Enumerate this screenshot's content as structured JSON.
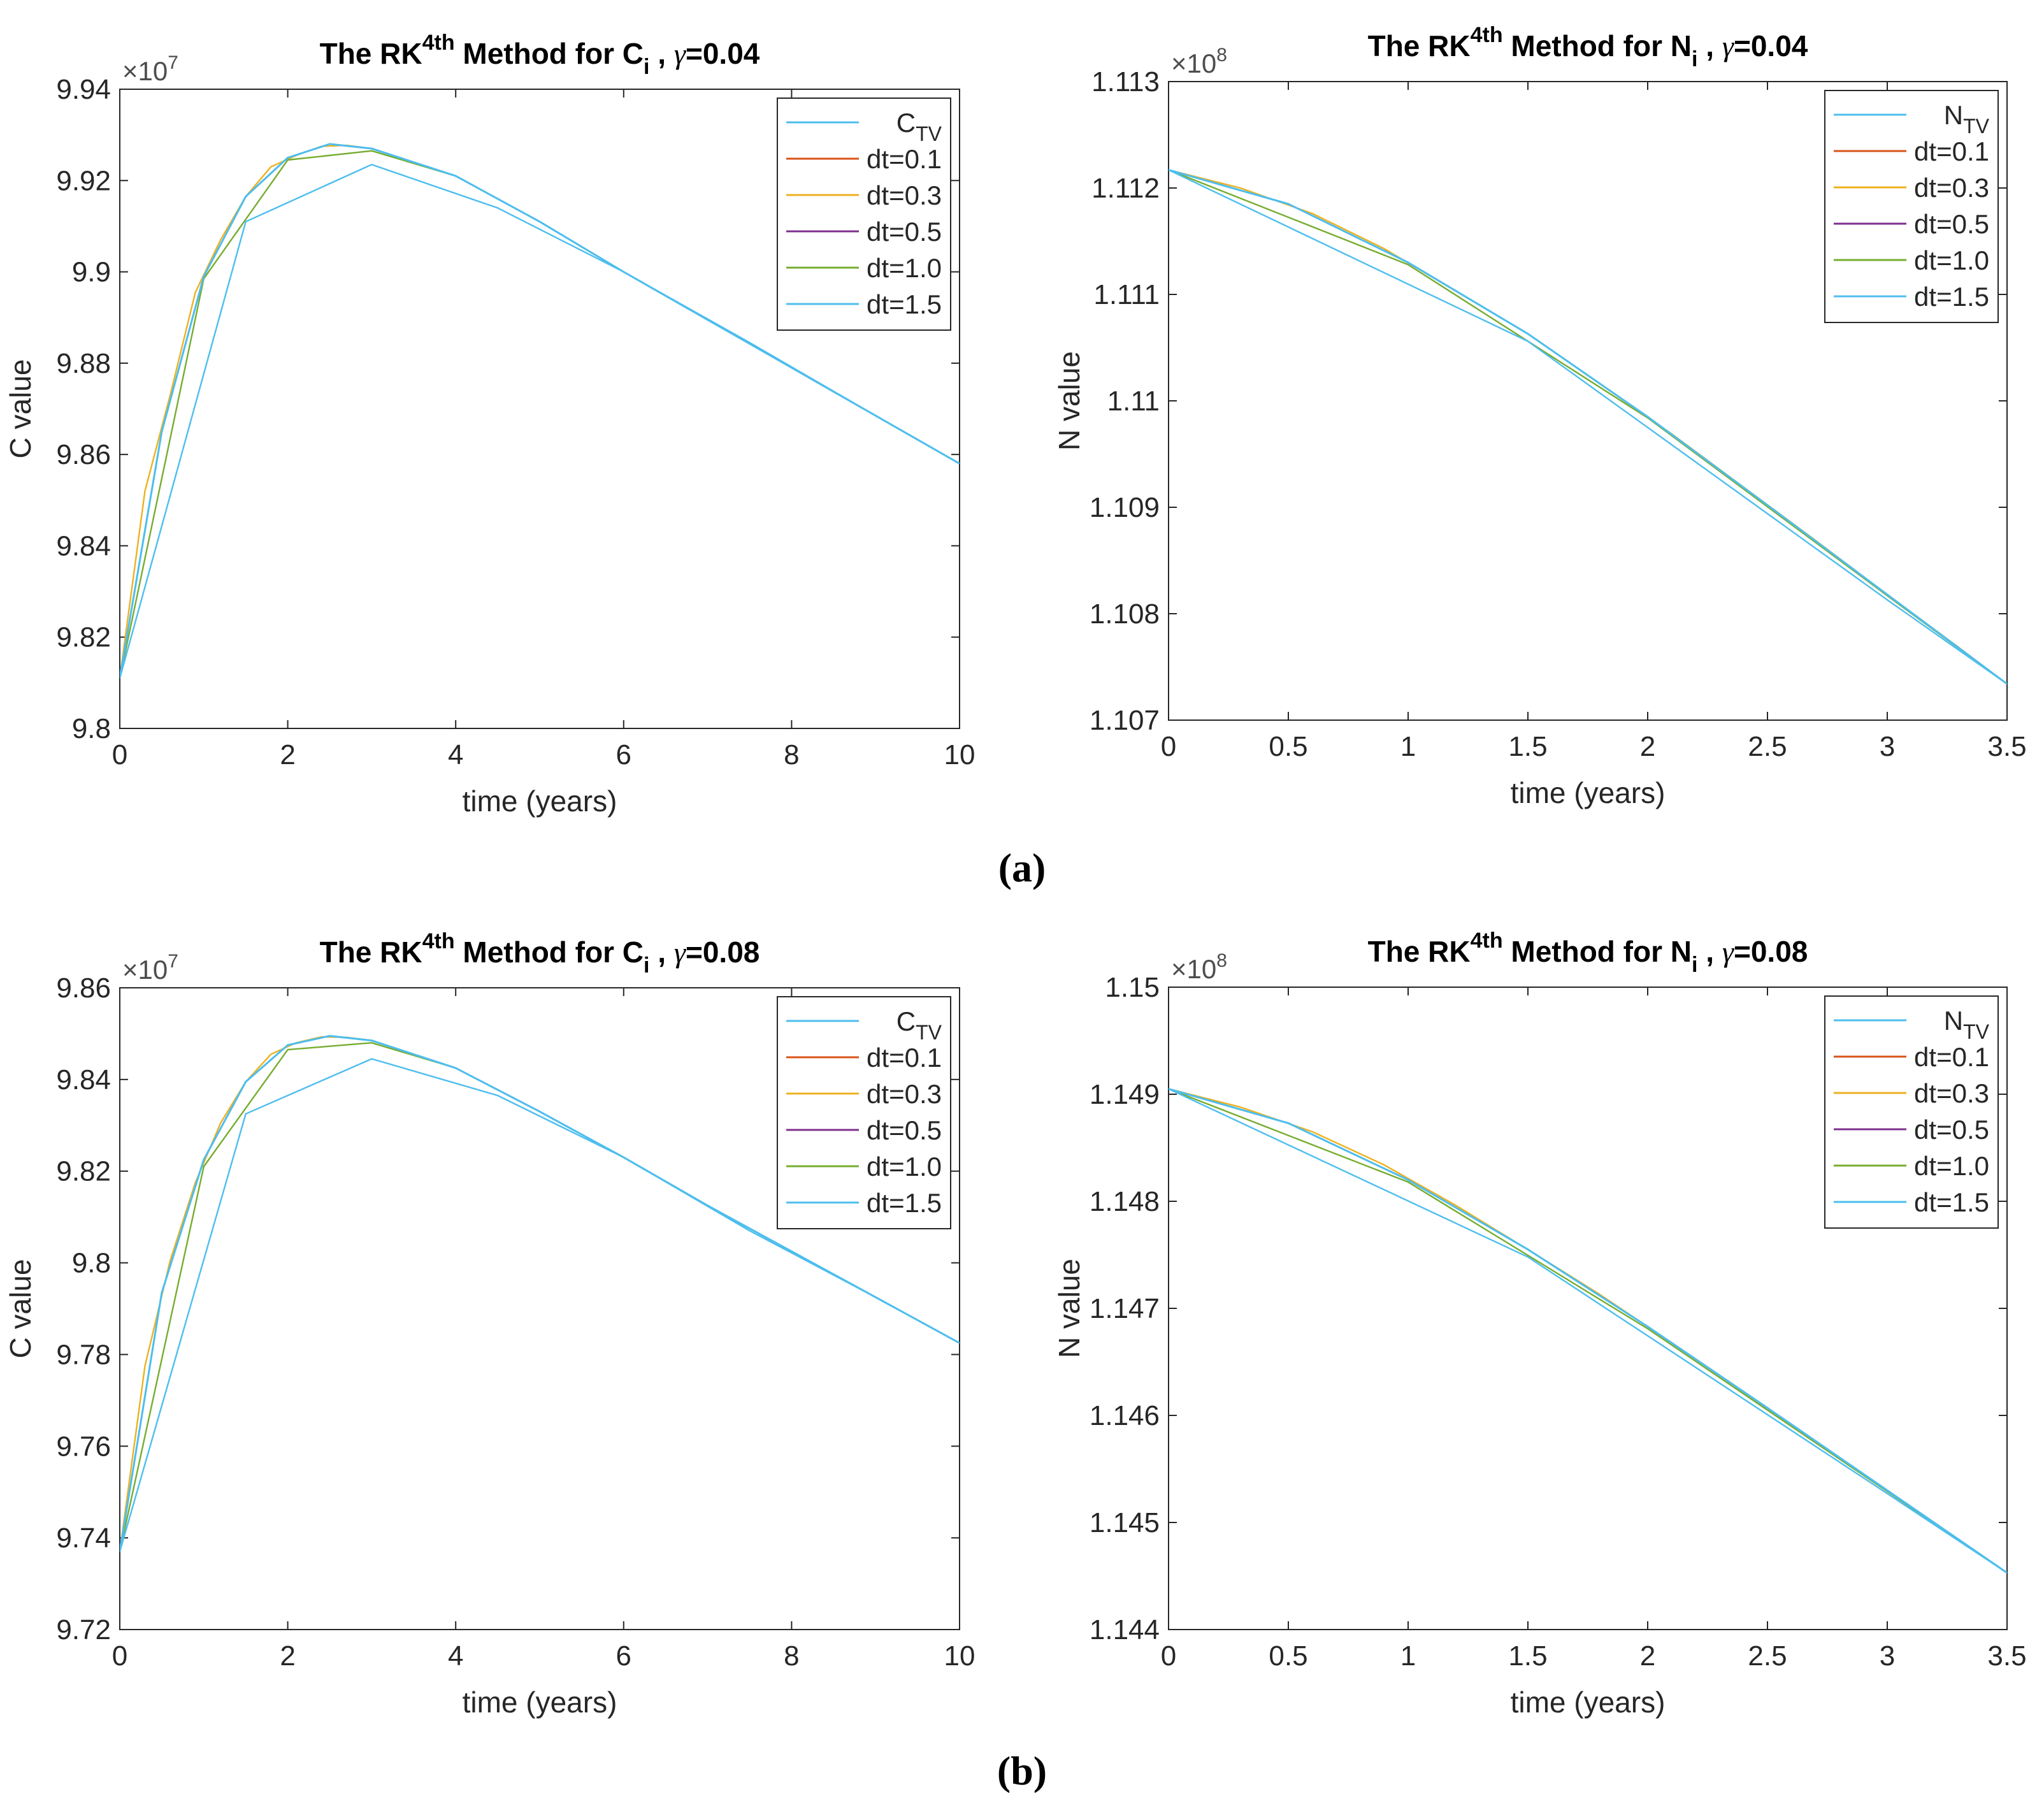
{
  "figure": {
    "panel_labels": [
      "(a)",
      "(b)"
    ],
    "series_colors": [
      "#4DBEEE",
      "#D95319",
      "#EDB120",
      "#7E2F8E",
      "#77AC30",
      "#4DBEEE"
    ]
  },
  "chart_data": [
    {
      "type": "line",
      "id": "a-left",
      "title_prefix": "The RK",
      "title_sup": "4th",
      "title_mid": " Method for ",
      "title_var": "C",
      "title_sub": "i",
      "title_sep": " ,  ",
      "title_gamma": "γ",
      "title_gamma_value": "=0.04",
      "xlabel": "time (years)",
      "ylabel": "C value",
      "exponent_base": "×10",
      "exponent_power": "7",
      "xlim": [
        0,
        10
      ],
      "ylim": [
        9.8,
        9.94
      ],
      "xticks": [
        0,
        2,
        4,
        6,
        8,
        10
      ],
      "xtick_labels": [
        "0",
        "2",
        "4",
        "6",
        "8",
        "10"
      ],
      "yticks": [
        9.8,
        9.82,
        9.84,
        9.86,
        9.88,
        9.9,
        9.92,
        9.94
      ],
      "ytick_labels": [
        "9.8",
        "9.82",
        "9.84",
        "9.86",
        "9.88",
        "9.9",
        "9.92",
        "9.94"
      ],
      "legend_position": "top-right",
      "series": [
        {
          "name": "C",
          "name_sub": "TV",
          "x": [
            0,
            0.5,
            1,
            1.5,
            2,
            2.5,
            3,
            4,
            5,
            6,
            7,
            8,
            9,
            10
          ],
          "y": [
            9.811,
            9.865,
            9.899,
            9.9165,
            9.925,
            9.928,
            9.927,
            9.921,
            9.911,
            9.9,
            9.8895,
            9.879,
            9.8685,
            9.858
          ]
        },
        {
          "name": "dt=0.1",
          "x": [
            0,
            0.5,
            1,
            1.5,
            2,
            2.5,
            3,
            4,
            5,
            6,
            7,
            8,
            9,
            10
          ],
          "y": [
            9.811,
            9.865,
            9.899,
            9.9165,
            9.925,
            9.928,
            9.927,
            9.921,
            9.911,
            9.9,
            9.8895,
            9.879,
            9.8685,
            9.858
          ]
        },
        {
          "name": "dt=0.3",
          "x": [
            0,
            0.3,
            0.6,
            0.9,
            1.2,
            1.5,
            1.8,
            2.1,
            2.4,
            2.7,
            3.0,
            4,
            5,
            6,
            7,
            8,
            9,
            10
          ],
          "y": [
            9.811,
            9.852,
            9.873,
            9.8955,
            9.907,
            9.9165,
            9.923,
            9.9255,
            9.9275,
            9.9277,
            9.927,
            9.921,
            9.911,
            9.9,
            9.8895,
            9.879,
            9.8685,
            9.858
          ]
        },
        {
          "name": "dt=0.5",
          "x": [
            0,
            0.5,
            1,
            1.5,
            2,
            2.5,
            3,
            4,
            5,
            6,
            7,
            8,
            9,
            10
          ],
          "y": [
            9.811,
            9.865,
            9.899,
            9.9165,
            9.925,
            9.928,
            9.927,
            9.921,
            9.911,
            9.9,
            9.8895,
            9.879,
            9.8685,
            9.858
          ]
        },
        {
          "name": "dt=1.0",
          "x": [
            0,
            1,
            2,
            3,
            4,
            5,
            6,
            7,
            8,
            9,
            10
          ],
          "y": [
            9.811,
            9.8985,
            9.9245,
            9.9265,
            9.921,
            9.911,
            9.9,
            9.8895,
            9.879,
            9.8685,
            9.858
          ]
        },
        {
          "name": "dt=1.5",
          "x": [
            0,
            1.5,
            3,
            4.5,
            6,
            7.5,
            9,
            10
          ],
          "y": [
            9.811,
            9.911,
            9.9235,
            9.914,
            9.9,
            9.8845,
            9.8685,
            9.858
          ]
        }
      ]
    },
    {
      "type": "line",
      "id": "a-right",
      "title_prefix": "The RK",
      "title_sup": "4th",
      "title_mid": " Method for ",
      "title_var": "N",
      "title_sub": "i",
      "title_sep": " ,  ",
      "title_gamma": "γ",
      "title_gamma_value": "=0.04",
      "xlabel": "time (years)",
      "ylabel": "N value",
      "exponent_base": "×10",
      "exponent_power": "8",
      "xlim": [
        0,
        3.5
      ],
      "ylim": [
        1.107,
        1.113
      ],
      "xticks": [
        0,
        0.5,
        1,
        1.5,
        2,
        2.5,
        3,
        3.5
      ],
      "xtick_labels": [
        "0",
        "0.5",
        "1",
        "1.5",
        "2",
        "2.5",
        "3",
        "3.5"
      ],
      "yticks": [
        1.107,
        1.108,
        1.109,
        1.11,
        1.111,
        1.112,
        1.113
      ],
      "ytick_labels": [
        "1.107",
        "1.108",
        "1.109",
        "1.11",
        "1.111",
        "1.112",
        "1.113"
      ],
      "legend_position": "top-right",
      "series": [
        {
          "name": "N",
          "name_sub": "TV",
          "x": [
            0,
            0.5,
            1,
            1.5,
            2,
            2.5,
            3,
            3.5
          ],
          "y": [
            1.11217,
            1.11185,
            1.1113,
            1.11063,
            1.10985,
            1.10902,
            1.10818,
            1.10734
          ]
        },
        {
          "name": "dt=0.1",
          "x": [
            0,
            0.5,
            1,
            1.5,
            2,
            2.5,
            3,
            3.5
          ],
          "y": [
            1.11217,
            1.11185,
            1.1113,
            1.11063,
            1.10985,
            1.10902,
            1.10818,
            1.10734
          ]
        },
        {
          "name": "dt=0.3",
          "x": [
            0,
            0.3,
            0.6,
            0.9,
            1.2,
            1.5,
            1.8,
            2.1,
            2.4,
            2.7,
            3.0,
            3.3,
            3.5
          ],
          "y": [
            1.11217,
            1.112,
            1.11176,
            1.11143,
            1.11103,
            1.11063,
            1.11016,
            1.10969,
            1.10919,
            1.10869,
            1.10818,
            1.10768,
            1.10734
          ]
        },
        {
          "name": "dt=0.5",
          "x": [
            0,
            0.5,
            1,
            1.5,
            2,
            2.5,
            3,
            3.5
          ],
          "y": [
            1.11217,
            1.11185,
            1.1113,
            1.11063,
            1.10985,
            1.10902,
            1.10818,
            1.10734
          ]
        },
        {
          "name": "dt=1.0",
          "x": [
            0,
            1,
            2,
            3,
            3.5
          ],
          "y": [
            1.11217,
            1.11128,
            1.10984,
            1.10817,
            1.10734
          ]
        },
        {
          "name": "dt=1.5",
          "x": [
            0,
            1.5,
            3,
            3.5
          ],
          "y": [
            1.11217,
            1.11056,
            1.10813,
            1.10734
          ]
        }
      ]
    },
    {
      "type": "line",
      "id": "b-left",
      "title_prefix": "The RK",
      "title_sup": "4th",
      "title_mid": " Method for ",
      "title_var": "C",
      "title_sub": "i",
      "title_sep": " ,  ",
      "title_gamma": "γ",
      "title_gamma_value": "=0.08",
      "xlabel": "time (years)",
      "ylabel": "C value",
      "exponent_base": "×10",
      "exponent_power": "7",
      "xlim": [
        0,
        10
      ],
      "ylim": [
        9.72,
        9.86
      ],
      "xticks": [
        0,
        2,
        4,
        6,
        8,
        10
      ],
      "xtick_labels": [
        "0",
        "2",
        "4",
        "6",
        "8",
        "10"
      ],
      "yticks": [
        9.72,
        9.74,
        9.76,
        9.78,
        9.8,
        9.82,
        9.84,
        9.86
      ],
      "ytick_labels": [
        "9.72",
        "9.74",
        "9.76",
        "9.78",
        "9.8",
        "9.82",
        "9.84",
        "9.86"
      ],
      "legend_position": "top-right",
      "series": [
        {
          "name": "C",
          "name_sub": "TV",
          "x": [
            0,
            0.5,
            1,
            1.5,
            2,
            2.5,
            3,
            4,
            5,
            6,
            7,
            8,
            9,
            10
          ],
          "y": [
            9.737,
            9.7935,
            9.8225,
            9.8395,
            9.8475,
            9.8495,
            9.8485,
            9.8425,
            9.833,
            9.823,
            9.8125,
            9.8025,
            9.7925,
            9.7825
          ]
        },
        {
          "name": "dt=0.1",
          "x": [
            0,
            0.5,
            1,
            1.5,
            2,
            2.5,
            3,
            4,
            5,
            6,
            7,
            8,
            9,
            10
          ],
          "y": [
            9.737,
            9.7935,
            9.8225,
            9.8395,
            9.8475,
            9.8495,
            9.8485,
            9.8425,
            9.833,
            9.823,
            9.8125,
            9.8025,
            9.7925,
            9.7825
          ]
        },
        {
          "name": "dt=0.3",
          "x": [
            0,
            0.3,
            0.6,
            0.9,
            1.2,
            1.5,
            1.8,
            2.1,
            2.4,
            2.7,
            3.0,
            4,
            5,
            6,
            7,
            8,
            9,
            10
          ],
          "y": [
            9.737,
            9.7775,
            9.8005,
            9.8175,
            9.8305,
            9.8395,
            9.8455,
            9.848,
            9.8493,
            9.8492,
            9.8485,
            9.8425,
            9.833,
            9.823,
            9.8125,
            9.8025,
            9.7925,
            9.7825
          ]
        },
        {
          "name": "dt=0.5",
          "x": [
            0,
            0.5,
            1,
            1.5,
            2,
            2.5,
            3,
            4,
            5,
            6,
            7,
            8,
            9,
            10
          ],
          "y": [
            9.737,
            9.7935,
            9.8225,
            9.8395,
            9.8475,
            9.8495,
            9.8485,
            9.8425,
            9.833,
            9.823,
            9.8125,
            9.8025,
            9.7925,
            9.7825
          ]
        },
        {
          "name": "dt=1.0",
          "x": [
            0,
            1,
            2,
            3,
            4,
            5,
            6,
            7,
            8,
            9,
            10
          ],
          "y": [
            9.737,
            9.821,
            9.8465,
            9.848,
            9.8425,
            9.833,
            9.823,
            9.8125,
            9.8025,
            9.7925,
            9.7825
          ]
        },
        {
          "name": "dt=1.5",
          "x": [
            0,
            1.5,
            3,
            4.5,
            6,
            7.5,
            9,
            10
          ],
          "y": [
            9.737,
            9.8325,
            9.8445,
            9.8365,
            9.823,
            9.807,
            9.7925,
            9.7825
          ]
        }
      ]
    },
    {
      "type": "line",
      "id": "b-right",
      "title_prefix": "The RK",
      "title_sup": "4th",
      "title_mid": " Method for ",
      "title_var": "N",
      "title_sub": "i",
      "title_sep": " ,  ",
      "title_gamma": "γ",
      "title_gamma_value": "=0.08",
      "xlabel": "time (years)",
      "ylabel": "N value",
      "exponent_base": "×10",
      "exponent_power": "8",
      "xlim": [
        0,
        3.5
      ],
      "ylim": [
        1.144,
        1.15
      ],
      "xticks": [
        0,
        0.5,
        1,
        1.5,
        2,
        2.5,
        3,
        3.5
      ],
      "xtick_labels": [
        "0",
        "0.5",
        "1",
        "1.5",
        "2",
        "2.5",
        "3",
        "3.5"
      ],
      "yticks": [
        1.144,
        1.145,
        1.146,
        1.147,
        1.148,
        1.149,
        1.15
      ],
      "ytick_labels": [
        "1.144",
        "1.145",
        "1.146",
        "1.147",
        "1.148",
        "1.149",
        "1.15"
      ],
      "legend_position": "top-right",
      "series": [
        {
          "name": "N",
          "name_sub": "TV",
          "x": [
            0,
            0.5,
            1,
            1.5,
            2,
            2.5,
            3,
            3.5
          ],
          "y": [
            1.14905,
            1.14873,
            1.1482,
            1.14755,
            1.14683,
            1.14607,
            1.1453,
            1.14453
          ]
        },
        {
          "name": "dt=0.1",
          "x": [
            0,
            0.5,
            1,
            1.5,
            2,
            2.5,
            3,
            3.5
          ],
          "y": [
            1.14905,
            1.14873,
            1.1482,
            1.14755,
            1.14683,
            1.14607,
            1.1453,
            1.14453
          ]
        },
        {
          "name": "dt=0.3",
          "x": [
            0,
            0.3,
            0.6,
            0.9,
            1.2,
            1.5,
            1.8,
            2.1,
            2.4,
            2.7,
            3.0,
            3.3,
            3.5
          ],
          "y": [
            1.14905,
            1.14888,
            1.14865,
            1.14834,
            1.14796,
            1.14755,
            1.14713,
            1.14668,
            1.14622,
            1.14576,
            1.1453,
            1.14484,
            1.14453
          ]
        },
        {
          "name": "dt=0.5",
          "x": [
            0,
            0.5,
            1,
            1.5,
            2,
            2.5,
            3,
            3.5
          ],
          "y": [
            1.14905,
            1.14873,
            1.1482,
            1.14755,
            1.14683,
            1.14607,
            1.1453,
            1.14453
          ]
        },
        {
          "name": "dt=1.0",
          "x": [
            0,
            1,
            2,
            3,
            3.5
          ],
          "y": [
            1.14905,
            1.14818,
            1.14681,
            1.14529,
            1.14453
          ]
        },
        {
          "name": "dt=1.5",
          "x": [
            0,
            1.5,
            3,
            3.5
          ],
          "y": [
            1.14905,
            1.14748,
            1.14527,
            1.14453
          ]
        }
      ]
    }
  ]
}
